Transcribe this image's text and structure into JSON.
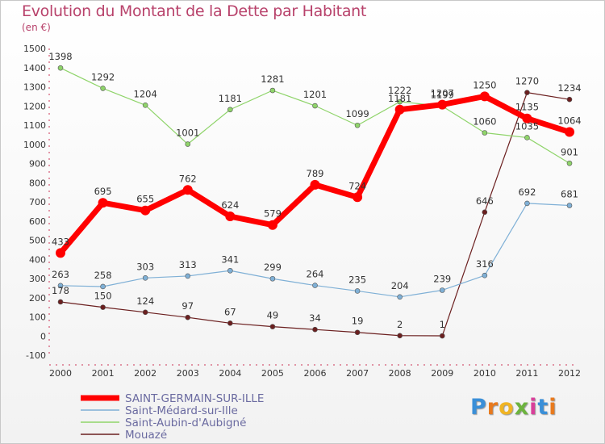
{
  "title": "Evolution du Montant de la Dette par Habitant",
  "unit": "(en €)",
  "logo": {
    "letters": [
      "P",
      "r",
      "o",
      "x",
      "i",
      "t",
      "i"
    ],
    "colors": [
      "#3a8fd8",
      "#e87a1e",
      "#f0b423",
      "#6cb33e",
      "#d8409a",
      "#3a8fd8",
      "#e87a1e"
    ]
  },
  "chart_data": {
    "type": "line",
    "x": [
      "2000",
      "2001",
      "2002",
      "2003",
      "2004",
      "2005",
      "2006",
      "2007",
      "2008",
      "2009",
      "2010",
      "2011",
      "2012"
    ],
    "ylim": [
      -100,
      1500
    ],
    "yticks": [
      -100,
      0,
      100,
      200,
      300,
      400,
      500,
      600,
      700,
      800,
      900,
      1000,
      1100,
      1200,
      1300,
      1400,
      1500
    ],
    "grid": false,
    "legend_position": "bottom-left",
    "series": [
      {
        "name": "Mouazé",
        "color": "#6b1f1f",
        "width": 1.2,
        "values": [
          178,
          150,
          124,
          97,
          67,
          49,
          34,
          19,
          2,
          1,
          646,
          1270,
          1234
        ],
        "labels": [
          "178",
          "150",
          "124",
          "97",
          "67",
          "49",
          "34",
          "19",
          "2",
          "1",
          "646",
          "1270",
          "1234"
        ]
      },
      {
        "name": "Saint-Aubin-d'Aubigné",
        "color": "#8fd46a",
        "width": 1.2,
        "values": [
          1398,
          1292,
          1204,
          1001,
          1181,
          1281,
          1201,
          1099,
          1222,
          1199,
          1060,
          1035,
          901
        ],
        "labels": [
          "1398",
          "1292",
          "1204",
          "1001",
          "1181",
          "1281",
          "1201",
          "1099",
          "1222",
          "1199",
          "1060",
          "1035",
          "901"
        ]
      },
      {
        "name": "Saint-Médard-sur-Ille",
        "color": "#7fb0d6",
        "width": 1.2,
        "values": [
          263,
          258,
          303,
          313,
          341,
          299,
          264,
          235,
          204,
          239,
          316,
          692,
          681
        ],
        "labels": [
          "263",
          "258",
          "303",
          "313",
          "341",
          "299",
          "264",
          "235",
          "204",
          "239",
          "316",
          "692",
          "681"
        ]
      },
      {
        "name": "SAINT-GERMAIN-SUR-ILLE",
        "color": "#ff0000",
        "width": 7,
        "values": [
          433,
          695,
          655,
          762,
          624,
          579,
          789,
          724,
          1181,
          1207,
          1250,
          1135,
          1064
        ],
        "labels": [
          "433",
          "695",
          "655",
          "762",
          "624",
          "579",
          "789",
          "724",
          "1181",
          "1207",
          "1250",
          "1135",
          "1064"
        ]
      }
    ],
    "legend": [
      "SAINT-GERMAIN-SUR-ILLE",
      "Saint-Médard-sur-Ille",
      "Saint-Aubin-d'Aubigné",
      "Mouazé"
    ]
  }
}
